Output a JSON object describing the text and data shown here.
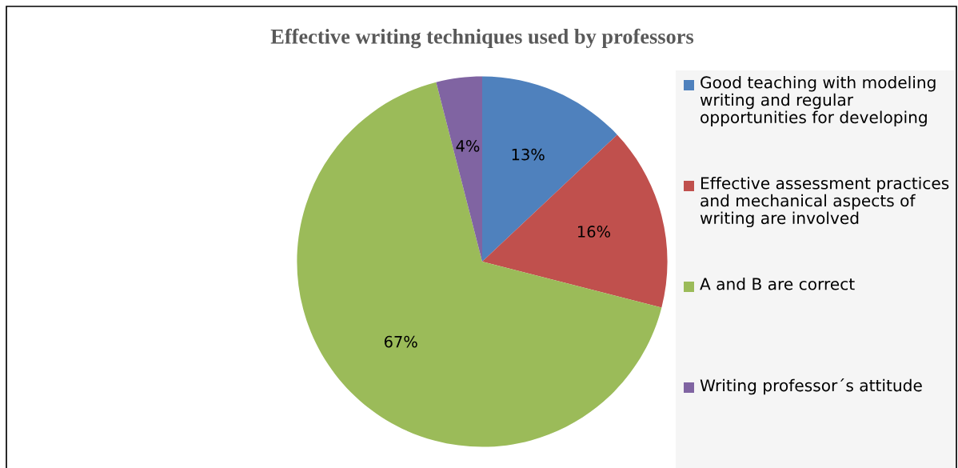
{
  "chart_data": {
    "type": "pie",
    "title": "Effective writing techniques used by professors",
    "categories": [
      "Good teaching with modeling writing and regular opportunities for developing",
      "Effective assessment practices and mechanical aspects of writing are involved",
      "A and B are correct",
      "Writing professor´s attitude"
    ],
    "values": [
      13,
      16,
      67,
      4
    ],
    "colors": [
      "#4f81bd",
      "#c0504d",
      "#9bbb59",
      "#8064a2"
    ],
    "value_labels": [
      "13%",
      "16%",
      "67%",
      "4%"
    ],
    "legend": "right"
  }
}
